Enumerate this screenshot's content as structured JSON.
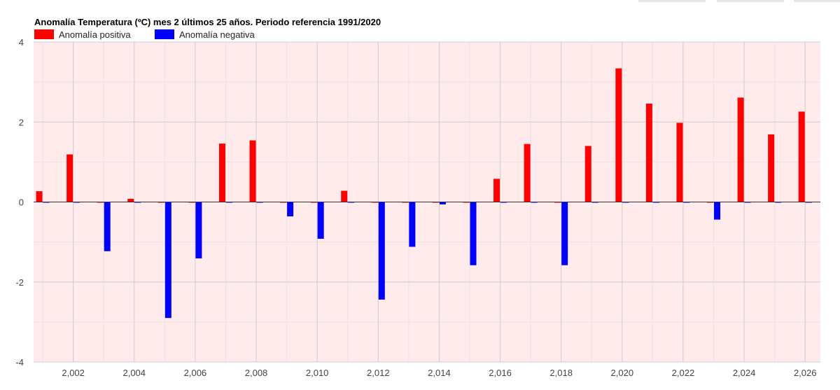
{
  "chart_data": {
    "type": "bar",
    "title": "Anomalía Temperatura (ºC) mes 2 últimos 25 años. Periodo referencia 1991/2020",
    "xlabel": "",
    "ylabel": "",
    "legend_position": "top-left",
    "grid": true,
    "xlim": [
      2000.7,
      2026.5
    ],
    "ylim": [
      -4,
      4
    ],
    "y_ticks": [
      "4",
      "2",
      "0",
      "-2",
      "-4"
    ],
    "y_tick_values": [
      4,
      2,
      0,
      -2,
      -4
    ],
    "x_ticks": [
      "2,002",
      "2,004",
      "2,006",
      "2,008",
      "2,010",
      "2,012",
      "2,014",
      "2,016",
      "2,018",
      "2,020",
      "2,022",
      "2,024",
      "2,026"
    ],
    "x_tick_values": [
      2002,
      2004,
      2006,
      2008,
      2010,
      2012,
      2014,
      2016,
      2018,
      2020,
      2022,
      2024,
      2026
    ],
    "x": [
      2001,
      2002,
      2003,
      2004,
      2005,
      2006,
      2007,
      2008,
      2009,
      2010,
      2011,
      2012,
      2013,
      2014,
      2015,
      2016,
      2017,
      2018,
      2019,
      2020,
      2021,
      2022,
      2023,
      2024,
      2025,
      2026
    ],
    "series": [
      {
        "name": "Anomalía positiva",
        "color": "#ff0000",
        "values": [
          0.27,
          1.19,
          0,
          0.08,
          0,
          0,
          1.46,
          1.54,
          0,
          0,
          0.28,
          0,
          0,
          0,
          0,
          0.58,
          1.45,
          0,
          1.4,
          3.34,
          2.46,
          1.98,
          0,
          2.61,
          1.69,
          2.26
        ]
      },
      {
        "name": "Anomalía negativa",
        "color": "#0000ff",
        "values": [
          0,
          0,
          -1.23,
          0,
          -2.9,
          -1.41,
          0,
          0,
          -0.36,
          -0.92,
          0,
          -2.44,
          -1.12,
          -0.06,
          -1.58,
          0,
          0,
          -1.58,
          0,
          0,
          0,
          0,
          -0.44,
          0,
          0,
          0
        ]
      }
    ],
    "colors": {
      "plot_background": "#ffebeb",
      "grid_major": "#cccccc",
      "grid_minor": "#e8e3e3",
      "zero_line": "#333333"
    }
  }
}
